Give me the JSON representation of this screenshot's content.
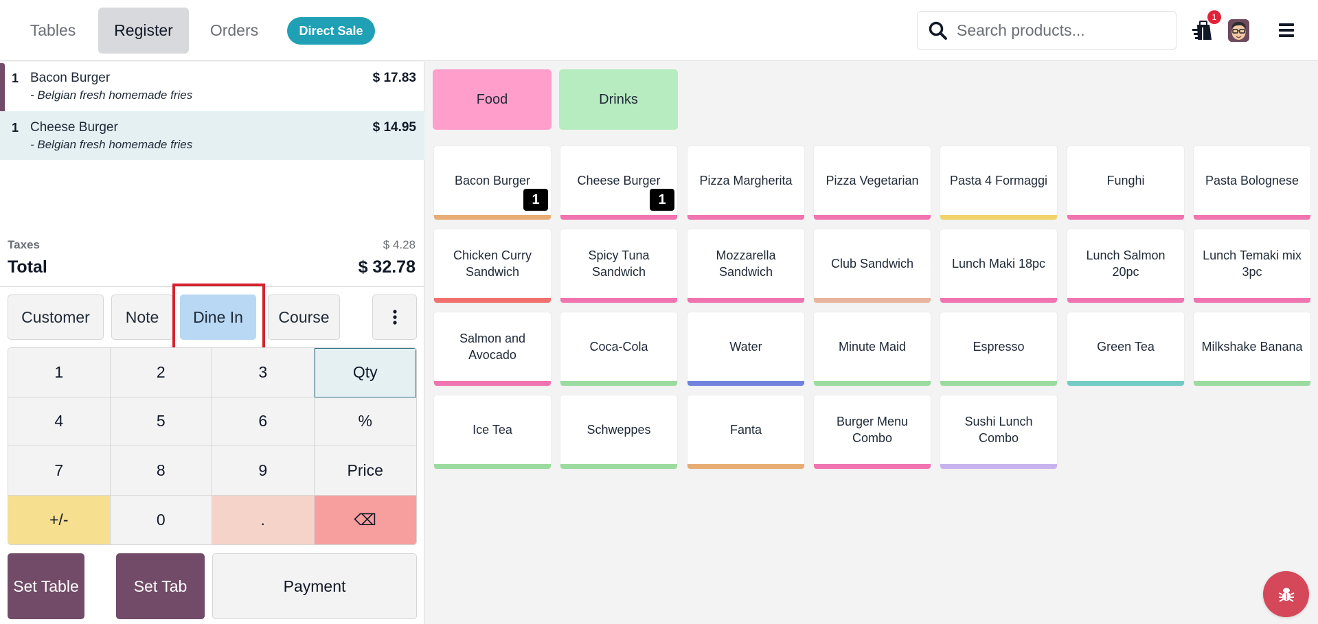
{
  "header": {
    "tabs": [
      {
        "label": "Tables",
        "active": false
      },
      {
        "label": "Register",
        "active": true
      },
      {
        "label": "Orders",
        "active": false
      }
    ],
    "direct_sale_label": "Direct Sale",
    "search": {
      "placeholder": "Search products...",
      "value": ""
    },
    "orders_icon": "shopping-bag-icon",
    "notification_count": "1",
    "avatar": "user-avatar",
    "menu_icon": "hamburger-menu-icon"
  },
  "order": {
    "lines": [
      {
        "qty": "1",
        "name": "Bacon Burger",
        "note": "- Belgian fresh homemade fries",
        "price": "$ 17.83",
        "selected": false
      },
      {
        "qty": "1",
        "name": "Cheese Burger",
        "note": "- Belgian fresh homemade fries",
        "price": "$ 14.95",
        "selected": true
      }
    ],
    "taxes_label": "Taxes",
    "taxes_value": "$ 4.28",
    "total_label": "Total",
    "total_value": "$ 32.78"
  },
  "controls": {
    "customer": "Customer",
    "note": "Note",
    "dine_in": "Dine In",
    "course": "Course",
    "more_icon": "kebab-menu-icon"
  },
  "numpad": {
    "keys": [
      "1",
      "2",
      "3",
      "Qty",
      "4",
      "5",
      "6",
      "%",
      "7",
      "8",
      "9",
      "Price",
      "+/-",
      "0",
      ".",
      "⌫"
    ],
    "active_mode": "Qty"
  },
  "actions": {
    "set_table": "Set Table",
    "set_tab": "Set Tab",
    "payment": "Payment"
  },
  "categories": [
    {
      "label": "Food",
      "color": "#ff9ecb"
    },
    {
      "label": "Drinks",
      "color": "#b7ebc0"
    }
  ],
  "products": [
    {
      "name": "Bacon Burger",
      "bar": "#e8ad74",
      "qty": "1"
    },
    {
      "name": "Cheese Burger",
      "bar": "#f074b0",
      "qty": "1"
    },
    {
      "name": "Pizza Margherita",
      "bar": "#f074b0"
    },
    {
      "name": "Pizza Vegetarian",
      "bar": "#f074b0"
    },
    {
      "name": "Pasta 4 Formaggi",
      "bar": "#f0d36b"
    },
    {
      "name": "Funghi",
      "bar": "#f074b0"
    },
    {
      "name": "Pasta Bolognese",
      "bar": "#f074b0"
    },
    {
      "name": "Chicken Curry Sandwich",
      "bar": "#f0716e"
    },
    {
      "name": "Spicy Tuna Sandwich",
      "bar": "#f074b0"
    },
    {
      "name": "Mozzarella Sandwich",
      "bar": "#f074b0"
    },
    {
      "name": "Club Sandwich",
      "bar": "#e8b49d"
    },
    {
      "name": "Lunch Maki 18pc",
      "bar": "#f074b0"
    },
    {
      "name": "Lunch Salmon 20pc",
      "bar": "#f074b0"
    },
    {
      "name": "Lunch Temaki mix 3pc",
      "bar": "#f074b0"
    },
    {
      "name": "Salmon and Avocado",
      "bar": "#f074b0"
    },
    {
      "name": "Coca-Cola",
      "bar": "#9bdb9f"
    },
    {
      "name": "Water",
      "bar": "#7082de"
    },
    {
      "name": "Minute Maid",
      "bar": "#9bdb9f"
    },
    {
      "name": "Espresso",
      "bar": "#9bdb9f"
    },
    {
      "name": "Green Tea",
      "bar": "#72cbc4"
    },
    {
      "name": "Milkshake Banana",
      "bar": "#9bdb9f"
    },
    {
      "name": "Ice Tea",
      "bar": "#9bdb9f"
    },
    {
      "name": "Schweppes",
      "bar": "#9bdb9f"
    },
    {
      "name": "Fanta",
      "bar": "#e8ad74"
    },
    {
      "name": "Burger Menu Combo",
      "bar": "#f074b0"
    },
    {
      "name": "Sushi Lunch Combo",
      "bar": "#c9b3ee"
    }
  ],
  "debug_icon": "bug-icon",
  "colors": {
    "brand": "#714b67",
    "direct_sale": "#1fa0b4",
    "highlight": "#d6222f"
  }
}
